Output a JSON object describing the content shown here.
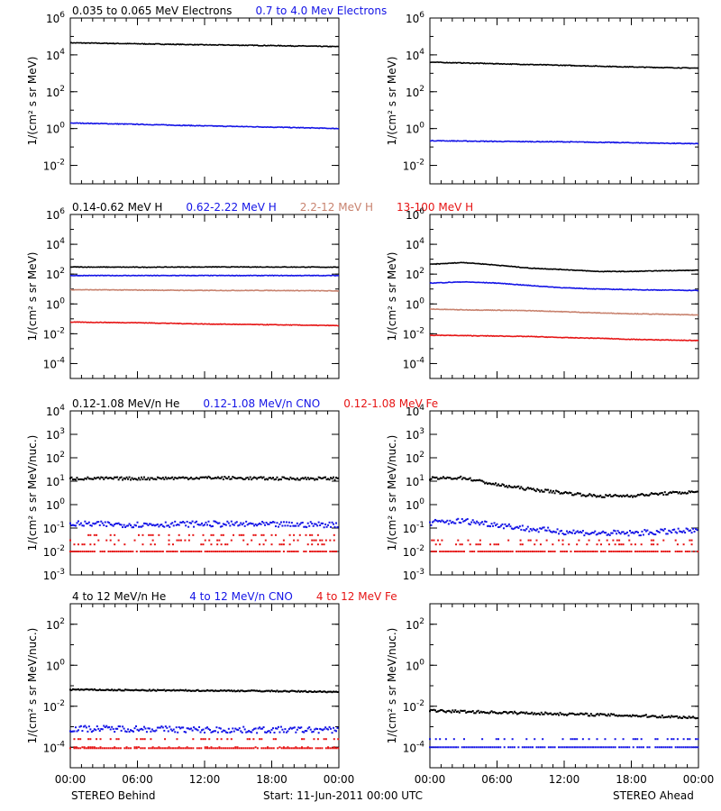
{
  "colors": {
    "black": "#000000",
    "blue": "#1414e6",
    "brown": "#c8826e",
    "red": "#e61414",
    "axis": "#000000"
  },
  "footer": {
    "left": "STEREO Behind",
    "center": "Start: 11-Jun-2011 00:00 UTC",
    "right": "STEREO Ahead"
  },
  "x_ticks": [
    "00:00",
    "06:00",
    "12:00",
    "18:00",
    "00:00"
  ],
  "chart_data": [
    {
      "id": "electrons-behind",
      "type": "scatter",
      "scale": "log",
      "ylim": [
        0.001,
        1000000
      ],
      "yticks": [
        {
          "v": 1000000,
          "b": "10",
          "e": "6"
        },
        {
          "v": 10000,
          "b": "10",
          "e": "4"
        },
        {
          "v": 100,
          "b": "10",
          "e": "2"
        },
        {
          "v": 1,
          "b": "10",
          "e": "0"
        },
        {
          "v": 0.01,
          "b": "10",
          "e": "-2"
        }
      ],
      "ylabel": "1/(cm² s sr MeV)",
      "xlabel": "",
      "legend": [
        {
          "text": "0.035 to 0.065 MeV Electrons",
          "color": "black"
        },
        {
          "text": "0.7 to 4.0 Mev Electrons",
          "color": "blue"
        }
      ],
      "series": [
        {
          "name": "0.035 to 0.065 MeV Electrons",
          "color": "black",
          "style": "line",
          "x": [
            0,
            6,
            12,
            18,
            24
          ],
          "y": [
            45000,
            40000,
            35000,
            32000,
            28000
          ]
        },
        {
          "name": "0.7 to 4.0 Mev Electrons",
          "color": "blue",
          "style": "line",
          "x": [
            0,
            6,
            12,
            18,
            24
          ],
          "y": [
            2.0,
            1.7,
            1.4,
            1.2,
            1.0
          ]
        }
      ]
    },
    {
      "id": "electrons-ahead",
      "type": "scatter",
      "scale": "log",
      "ylim": [
        0.001,
        1000000
      ],
      "yticks": [
        {
          "v": 1000000,
          "b": "10",
          "e": "6"
        },
        {
          "v": 10000,
          "b": "10",
          "e": "4"
        },
        {
          "v": 100,
          "b": "10",
          "e": "2"
        },
        {
          "v": 1,
          "b": "10",
          "e": "0"
        },
        {
          "v": 0.01,
          "b": "10",
          "e": "-2"
        }
      ],
      "ylabel": "1/(cm² s sr MeV)",
      "xlabel": "",
      "legend": [],
      "series": [
        {
          "name": "0.035 to 0.065 MeV Electrons",
          "color": "black",
          "style": "line",
          "x": [
            0,
            6,
            12,
            18,
            24
          ],
          "y": [
            4000,
            3300,
            2700,
            2200,
            1900
          ]
        },
        {
          "name": "0.7 to 4.0 Mev Electrons",
          "color": "blue",
          "style": "line",
          "x": [
            0,
            6,
            12,
            18,
            24
          ],
          "y": [
            0.22,
            0.2,
            0.19,
            0.17,
            0.15
          ]
        }
      ]
    },
    {
      "id": "protons-behind",
      "type": "scatter",
      "scale": "log",
      "ylim": [
        1e-05,
        1000000
      ],
      "yticks": [
        {
          "v": 1000000,
          "b": "10",
          "e": "6"
        },
        {
          "v": 10000,
          "b": "10",
          "e": "4"
        },
        {
          "v": 100,
          "b": "10",
          "e": "2"
        },
        {
          "v": 1,
          "b": "10",
          "e": "0"
        },
        {
          "v": 0.01,
          "b": "10",
          "e": "-2"
        },
        {
          "v": 0.0001,
          "b": "10",
          "e": "-4"
        }
      ],
      "ylabel": "1/(cm² s sr MeV)",
      "xlabel": "",
      "legend": [
        {
          "text": "0.14-0.62 MeV H",
          "color": "black"
        },
        {
          "text": "0.62-2.22 MeV H",
          "color": "blue"
        },
        {
          "text": "2.2-12 MeV H",
          "color": "brown"
        },
        {
          "text": "13-100 MeV H",
          "color": "red"
        }
      ],
      "series": [
        {
          "name": "0.14-0.62 MeV H",
          "color": "black",
          "style": "line",
          "x": [
            0,
            6,
            12,
            18,
            24
          ],
          "y": [
            300,
            290,
            300,
            300,
            290
          ]
        },
        {
          "name": "0.62-2.22 MeV H",
          "color": "blue",
          "style": "line",
          "x": [
            0,
            6,
            12,
            18,
            24
          ],
          "y": [
            80,
            80,
            80,
            80,
            80
          ]
        },
        {
          "name": "2.2-12 MeV H",
          "color": "brown",
          "style": "line",
          "x": [
            0,
            6,
            12,
            18,
            24
          ],
          "y": [
            9,
            8.5,
            8,
            8,
            7.5
          ]
        },
        {
          "name": "13-100 MeV H",
          "color": "red",
          "style": "line",
          "x": [
            0,
            6,
            12,
            18,
            24
          ],
          "y": [
            0.06,
            0.055,
            0.045,
            0.04,
            0.035
          ]
        }
      ]
    },
    {
      "id": "protons-ahead",
      "type": "scatter",
      "scale": "log",
      "ylim": [
        1e-05,
        1000000
      ],
      "yticks": [
        {
          "v": 1000000,
          "b": "10",
          "e": "6"
        },
        {
          "v": 10000,
          "b": "10",
          "e": "4"
        },
        {
          "v": 100,
          "b": "10",
          "e": "2"
        },
        {
          "v": 1,
          "b": "10",
          "e": "0"
        },
        {
          "v": 0.01,
          "b": "10",
          "e": "-2"
        },
        {
          "v": 0.0001,
          "b": "10",
          "e": "-4"
        }
      ],
      "ylabel": "1/(cm² s sr MeV)",
      "xlabel": "",
      "legend": [],
      "series": [
        {
          "name": "0.14-0.62 MeV H",
          "color": "black",
          "style": "line",
          "x": [
            0,
            3,
            6,
            9,
            12,
            15,
            18,
            21,
            24
          ],
          "y": [
            450,
            600,
            400,
            250,
            200,
            150,
            150,
            170,
            180
          ]
        },
        {
          "name": "0.62-2.22 MeV H",
          "color": "blue",
          "style": "line",
          "x": [
            0,
            3,
            6,
            9,
            12,
            15,
            18,
            21,
            24
          ],
          "y": [
            25,
            30,
            25,
            17,
            12,
            10,
            9,
            8.5,
            8
          ]
        },
        {
          "name": "2.2-12 MeV H",
          "color": "brown",
          "style": "line",
          "x": [
            0,
            3,
            6,
            9,
            12,
            15,
            18,
            21,
            24
          ],
          "y": [
            0.45,
            0.4,
            0.38,
            0.35,
            0.3,
            0.25,
            0.22,
            0.2,
            0.18
          ]
        },
        {
          "name": "13-100 MeV H",
          "color": "red",
          "style": "line",
          "x": [
            0,
            3,
            6,
            9,
            12,
            15,
            18,
            21,
            24
          ],
          "y": [
            0.008,
            0.0075,
            0.007,
            0.0065,
            0.0055,
            0.005,
            0.0042,
            0.0038,
            0.0035
          ]
        }
      ]
    },
    {
      "id": "heavy-low-behind",
      "type": "scatter",
      "scale": "log",
      "ylim": [
        0.001,
        10000
      ],
      "yticks": [
        {
          "v": 10000,
          "b": "10",
          "e": "4"
        },
        {
          "v": 1000,
          "b": "10",
          "e": "3"
        },
        {
          "v": 100,
          "b": "10",
          "e": "2"
        },
        {
          "v": 10,
          "b": "10",
          "e": "1"
        },
        {
          "v": 1,
          "b": "10",
          "e": "0"
        },
        {
          "v": 0.1,
          "b": "10",
          "e": "-1"
        },
        {
          "v": 0.01,
          "b": "10",
          "e": "-2"
        },
        {
          "v": 0.001,
          "b": "10",
          "e": "-3"
        }
      ],
      "ylabel": "1/(cm² s sr MeV/nuc.)",
      "xlabel": "",
      "legend": [
        {
          "text": "0.12-1.08 MeV/n He",
          "color": "black"
        },
        {
          "text": "0.12-1.08 MeV/n CNO",
          "color": "blue"
        },
        {
          "text": "0.12-1.08 MeV Fe",
          "color": "red"
        }
      ],
      "series": [
        {
          "name": "0.12-1.08 MeV/n He",
          "color": "black",
          "style": "dots",
          "x": [
            0,
            6,
            12,
            18,
            24
          ],
          "y": [
            13,
            13,
            14,
            13,
            13
          ],
          "spread": 0.06
        },
        {
          "name": "0.12-1.08 MeV/n CNO",
          "color": "blue",
          "style": "dots",
          "x": [
            0,
            6,
            12,
            18,
            24
          ],
          "y": [
            0.15,
            0.14,
            0.15,
            0.14,
            0.14
          ],
          "spread": 0.12
        },
        {
          "name": "0.12-1.08 MeV Fe",
          "color": "red",
          "style": "levels",
          "levels": [
            0.01,
            0.02,
            0.03,
            0.05
          ]
        }
      ]
    },
    {
      "id": "heavy-low-ahead",
      "type": "scatter",
      "scale": "log",
      "ylim": [
        0.001,
        10000
      ],
      "yticks": [
        {
          "v": 10000,
          "b": "10",
          "e": "4"
        },
        {
          "v": 1000,
          "b": "10",
          "e": "3"
        },
        {
          "v": 100,
          "b": "10",
          "e": "2"
        },
        {
          "v": 10,
          "b": "10",
          "e": "1"
        },
        {
          "v": 1,
          "b": "10",
          "e": "0"
        },
        {
          "v": 0.1,
          "b": "10",
          "e": "-1"
        },
        {
          "v": 0.01,
          "b": "10",
          "e": "-2"
        },
        {
          "v": 0.001,
          "b": "10",
          "e": "-3"
        }
      ],
      "ylabel": "1/(cm² s sr MeV/nuc.)",
      "xlabel": "",
      "legend": [],
      "series": [
        {
          "name": "0.12-1.08 MeV/n He",
          "color": "black",
          "style": "dots",
          "x": [
            0,
            3,
            6,
            9,
            12,
            15,
            18,
            21,
            24
          ],
          "y": [
            13,
            14,
            7,
            4.5,
            3.2,
            2.3,
            2.4,
            3.0,
            3.5
          ],
          "spread": 0.06
        },
        {
          "name": "0.12-1.08 MeV/n CNO",
          "color": "blue",
          "style": "dots",
          "x": [
            0,
            3,
            6,
            9,
            12,
            15,
            18,
            21,
            24
          ],
          "y": [
            0.17,
            0.2,
            0.14,
            0.09,
            0.07,
            0.06,
            0.06,
            0.07,
            0.075
          ],
          "spread": 0.12
        },
        {
          "name": "0.12-1.08 MeV Fe",
          "color": "red",
          "style": "levels",
          "levels": [
            0.01,
            0.02,
            0.03
          ]
        }
      ]
    },
    {
      "id": "heavy-high-behind",
      "type": "scatter",
      "scale": "log",
      "ylim": [
        1e-05,
        1000
      ],
      "yticks": [
        {
          "v": 100,
          "b": "10",
          "e": "2"
        },
        {
          "v": 1,
          "b": "10",
          "e": "0"
        },
        {
          "v": 0.01,
          "b": "10",
          "e": "-2"
        },
        {
          "v": 0.0001,
          "b": "10",
          "e": "-4"
        }
      ],
      "ylabel": "1/(cm² s sr MeV/nuc.)",
      "xlabel": "",
      "legend": [
        {
          "text": "4 to 12 MeV/n He",
          "color": "black"
        },
        {
          "text": "4 to 12 MeV/n CNO",
          "color": "blue"
        },
        {
          "text": "4 to 12 MeV Fe",
          "color": "red"
        }
      ],
      "series": [
        {
          "name": "4 to 12 MeV/n He",
          "color": "black",
          "style": "dots",
          "x": [
            0,
            6,
            12,
            18,
            24
          ],
          "y": [
            0.065,
            0.06,
            0.058,
            0.055,
            0.05
          ],
          "spread": 0.03
        },
        {
          "name": "4 to 12 MeV/n CNO",
          "color": "blue",
          "style": "dots",
          "x": [
            0,
            6,
            12,
            18,
            24
          ],
          "y": [
            0.0008,
            0.0008,
            0.0007,
            0.0007,
            0.0007
          ],
          "spread": 0.15
        },
        {
          "name": "4 to 12 MeV Fe",
          "color": "red",
          "style": "levels",
          "levels": [
            9e-05,
            0.0001,
            0.00025
          ]
        }
      ]
    },
    {
      "id": "heavy-high-ahead",
      "type": "scatter",
      "scale": "log",
      "ylim": [
        1e-05,
        1000
      ],
      "yticks": [
        {
          "v": 100,
          "b": "10",
          "e": "2"
        },
        {
          "v": 1,
          "b": "10",
          "e": "0"
        },
        {
          "v": 0.01,
          "b": "10",
          "e": "-2"
        },
        {
          "v": 0.0001,
          "b": "10",
          "e": "-4"
        }
      ],
      "ylabel": "1/(cm² s sr MeV/nuc.)",
      "xlabel": "",
      "legend": [],
      "series": [
        {
          "name": "4 to 12 MeV/n He",
          "color": "black",
          "style": "dots",
          "x": [
            0,
            6,
            12,
            18,
            24
          ],
          "y": [
            0.006,
            0.005,
            0.0042,
            0.0035,
            0.0028
          ],
          "spread": 0.06
        },
        {
          "name": "4 to 12 MeV/n CNO",
          "color": "blue",
          "style": "levels",
          "levels": [
            0.0001,
            0.00025
          ]
        },
        {
          "name": "4 to 12 MeV Fe",
          "color": "red",
          "style": "levels",
          "levels": []
        }
      ]
    }
  ]
}
